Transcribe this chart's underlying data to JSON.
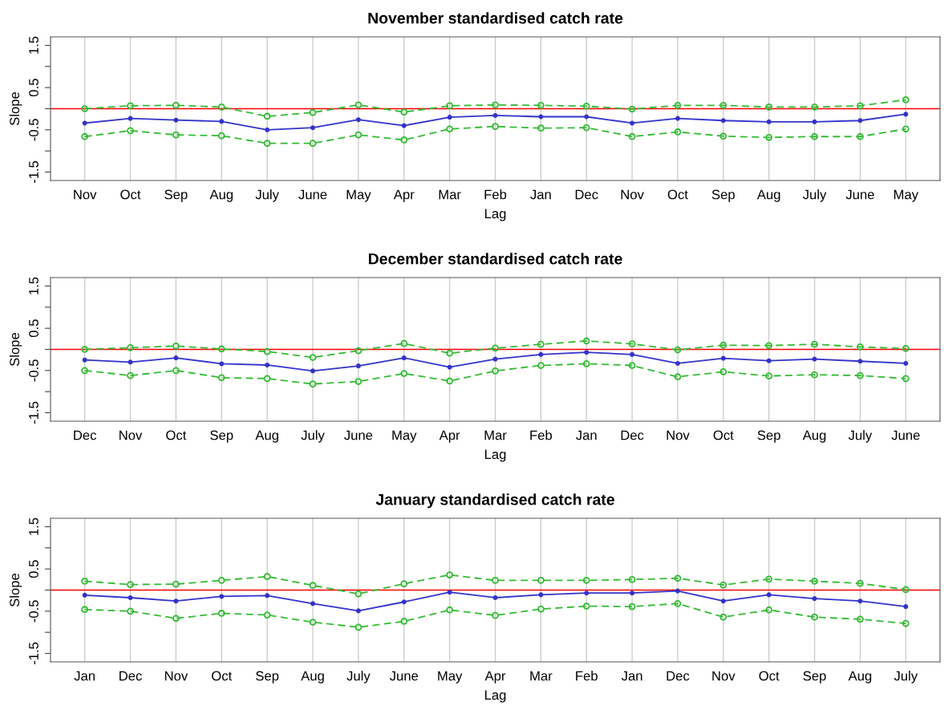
{
  "chart_data": [
    {
      "type": "line",
      "title": "November standardised catch rate",
      "xlabel": "Lag",
      "ylabel": "Slope",
      "categories": [
        "Nov",
        "Oct",
        "Sep",
        "Aug",
        "July",
        "June",
        "May",
        "Apr",
        "Mar",
        "Feb",
        "Jan",
        "Dec",
        "Nov",
        "Oct",
        "Sep",
        "Aug",
        "July",
        "June",
        "May"
      ],
      "series": [
        {
          "color": "#3333cc",
          "marker": "circle",
          "line_style": "solid",
          "values": [
            -0.34,
            -0.23,
            -0.27,
            -0.3,
            -0.5,
            -0.45,
            -0.26,
            -0.4,
            -0.2,
            -0.16,
            -0.19,
            -0.19,
            -0.34,
            -0.23,
            -0.28,
            -0.31,
            -0.31,
            -0.28,
            -0.13
          ]
        },
        {
          "color": "#33bb33",
          "marker": "circle",
          "line_style": "dashed",
          "values": [
            0.0,
            0.07,
            0.08,
            0.04,
            -0.18,
            -0.09,
            0.09,
            -0.08,
            0.07,
            0.09,
            0.08,
            0.06,
            -0.01,
            0.08,
            0.08,
            0.04,
            0.04,
            0.07,
            0.21
          ]
        },
        {
          "color": "#33bb33",
          "marker": "circle",
          "line_style": "dashed",
          "values": [
            -0.66,
            -0.52,
            -0.62,
            -0.64,
            -0.82,
            -0.82,
            -0.62,
            -0.74,
            -0.48,
            -0.42,
            -0.46,
            -0.45,
            -0.66,
            -0.55,
            -0.65,
            -0.68,
            -0.66,
            -0.66,
            -0.48
          ]
        }
      ],
      "ylim": [
        -1.7,
        1.7
      ],
      "yticks": [
        1.5,
        {
          "value": 1,
          "label": null
        },
        0.5,
        {
          "value": 0,
          "label": null
        },
        -0.5,
        {
          "value": -1,
          "label": null
        },
        -1.5
      ],
      "ref_lines": [
        {
          "axis": "y",
          "value": 0,
          "color": "#ff0000"
        }
      ],
      "grid": "x",
      "legend": false
    },
    {
      "type": "line",
      "title": "December standardised catch rate",
      "xlabel": "Lag",
      "ylabel": "Slope",
      "categories": [
        "Dec",
        "Nov",
        "Oct",
        "Sep",
        "Aug",
        "July",
        "June",
        "May",
        "Apr",
        "Mar",
        "Feb",
        "Jan",
        "Dec",
        "Nov",
        "Oct",
        "Sep",
        "Aug",
        "July",
        "June"
      ],
      "series": [
        {
          "color": "#3333cc",
          "marker": "circle",
          "line_style": "solid",
          "values": [
            -0.25,
            -0.3,
            -0.2,
            -0.34,
            -0.37,
            -0.51,
            -0.39,
            -0.2,
            -0.42,
            -0.23,
            -0.12,
            -0.07,
            -0.12,
            -0.33,
            -0.21,
            -0.27,
            -0.23,
            -0.28,
            -0.33
          ]
        },
        {
          "color": "#33bb33",
          "marker": "circle",
          "line_style": "dashed",
          "values": [
            0.0,
            0.04,
            0.08,
            0.01,
            -0.05,
            -0.19,
            -0.03,
            0.14,
            -0.09,
            0.03,
            0.12,
            0.2,
            0.13,
            -0.01,
            0.1,
            0.09,
            0.12,
            0.06,
            0.02
          ]
        },
        {
          "color": "#33bb33",
          "marker": "circle",
          "line_style": "dashed",
          "values": [
            -0.5,
            -0.62,
            -0.5,
            -0.67,
            -0.69,
            -0.82,
            -0.76,
            -0.57,
            -0.75,
            -0.51,
            -0.38,
            -0.34,
            -0.38,
            -0.65,
            -0.53,
            -0.63,
            -0.6,
            -0.62,
            -0.69
          ]
        }
      ],
      "ylim": [
        -1.7,
        1.7
      ],
      "yticks": [
        1.5,
        {
          "value": 1,
          "label": null
        },
        0.5,
        {
          "value": 0,
          "label": null
        },
        -0.5,
        {
          "value": -1,
          "label": null
        },
        -1.5
      ],
      "ref_lines": [
        {
          "axis": "y",
          "value": 0,
          "color": "#ff0000"
        }
      ],
      "grid": "x",
      "legend": false
    },
    {
      "type": "line",
      "title": "January standardised catch rate",
      "xlabel": "Lag",
      "ylabel": "Slope",
      "categories": [
        "Jan",
        "Dec",
        "Nov",
        "Oct",
        "Sep",
        "Aug",
        "July",
        "June",
        "May",
        "Apr",
        "Mar",
        "Feb",
        "Jan",
        "Dec",
        "Nov",
        "Oct",
        "Sep",
        "Aug",
        "July"
      ],
      "series": [
        {
          "color": "#3333cc",
          "marker": "circle",
          "line_style": "solid",
          "values": [
            -0.12,
            -0.18,
            -0.26,
            -0.15,
            -0.13,
            -0.32,
            -0.49,
            -0.28,
            -0.05,
            -0.18,
            -0.11,
            -0.07,
            -0.07,
            -0.02,
            -0.26,
            -0.11,
            -0.2,
            -0.26,
            -0.39
          ]
        },
        {
          "color": "#33bb33",
          "marker": "circle",
          "line_style": "dashed",
          "values": [
            0.21,
            0.13,
            0.14,
            0.23,
            0.32,
            0.11,
            -0.09,
            0.15,
            0.36,
            0.23,
            0.23,
            0.23,
            0.25,
            0.28,
            0.12,
            0.26,
            0.21,
            0.16,
            0.01
          ]
        },
        {
          "color": "#33bb33",
          "marker": "circle",
          "line_style": "dashed",
          "values": [
            -0.46,
            -0.5,
            -0.67,
            -0.55,
            -0.59,
            -0.76,
            -0.88,
            -0.74,
            -0.47,
            -0.6,
            -0.45,
            -0.38,
            -0.39,
            -0.32,
            -0.64,
            -0.47,
            -0.64,
            -0.69,
            -0.79
          ]
        }
      ],
      "ylim": [
        -1.7,
        1.7
      ],
      "yticks": [
        1.5,
        {
          "value": 1,
          "label": null
        },
        0.5,
        {
          "value": 0,
          "label": null
        },
        -0.5,
        {
          "value": -1,
          "label": null
        },
        -1.5
      ],
      "ref_lines": [
        {
          "axis": "y",
          "value": 0,
          "color": "#ff0000"
        }
      ],
      "grid": "x",
      "legend": false
    }
  ]
}
